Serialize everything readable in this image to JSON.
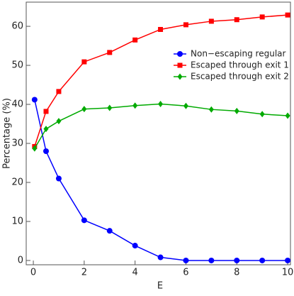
{
  "chart_data": {
    "type": "line",
    "x_label": "E",
    "y_label": "Percentage (%)",
    "x": [
      0.05,
      0.5,
      1,
      2,
      3,
      4,
      5,
      6,
      7,
      8,
      9,
      10
    ],
    "series": [
      {
        "name": "Non−escaping regular",
        "color": "#0000ff",
        "marker": "circle",
        "values": [
          41.2,
          28,
          21,
          10.3,
          7.6,
          3.8,
          0.8,
          0,
          0,
          0,
          0,
          0
        ]
      },
      {
        "name": "Escaped through exit 1",
        "color": "#ff0000",
        "marker": "square",
        "values": [
          29.2,
          38.2,
          43.3,
          50.9,
          53.3,
          56.5,
          59.2,
          60.4,
          61.3,
          61.7,
          62.4,
          62.9
        ]
      },
      {
        "name": "Escaped through exit 2",
        "color": "#00aa00",
        "marker": "diamond",
        "values": [
          28.7,
          33.7,
          35.7,
          38.8,
          39.1,
          39.7,
          40.1,
          39.6,
          38.7,
          38.3,
          37.5,
          37.1
        ]
      }
    ],
    "xlim": [
      -0.28,
      10.11
    ],
    "ylim": [
      -1.1,
      66.2
    ],
    "xticks": [
      0,
      2,
      4,
      6,
      8,
      10
    ],
    "yticks": [
      0,
      10,
      20,
      30,
      40,
      50,
      60
    ],
    "legend": "upper-right"
  }
}
